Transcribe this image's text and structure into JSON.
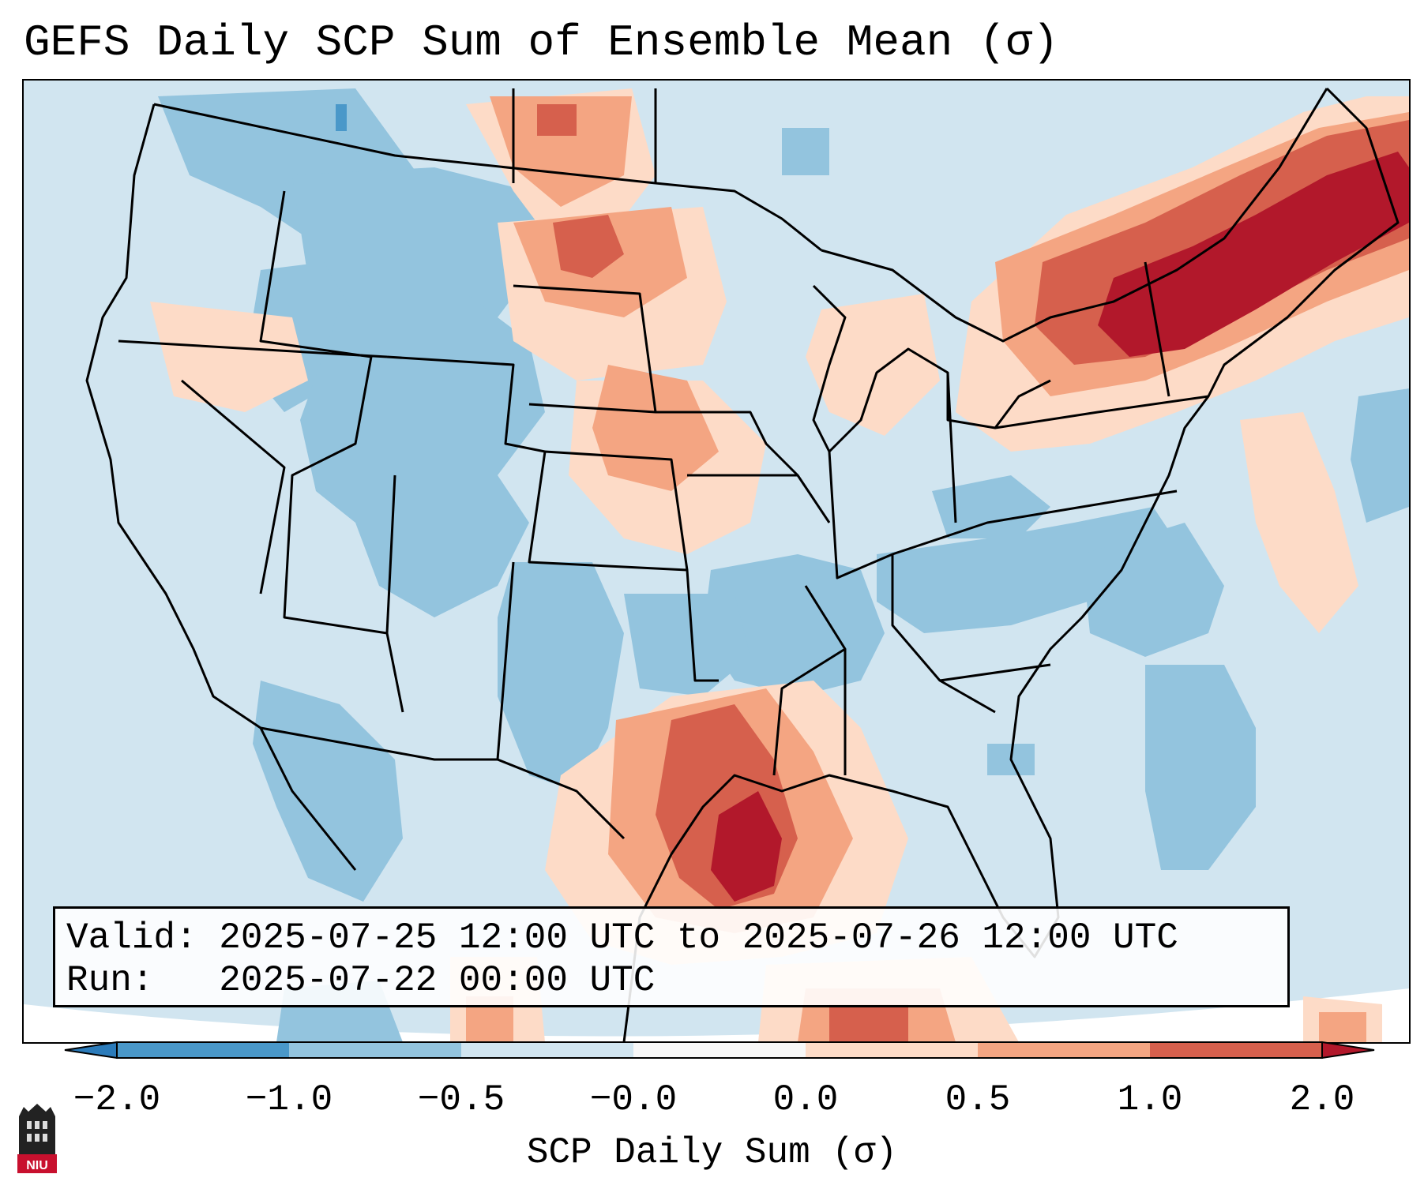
{
  "title": "GEFS Daily SCP Sum of Ensemble Mean (σ)",
  "info": {
    "valid_label": "Valid:",
    "valid_value": "2025-07-25 12:00 UTC to 2025-07-26 12:00 UTC",
    "run_label": "Run:",
    "run_value": "2025-07-22 00:00 UTC"
  },
  "colorbar": {
    "label": "SCP Daily Sum (σ)",
    "ticks": [
      "−2.0",
      "−1.0",
      "−0.5",
      "−0.0",
      "0.0",
      "0.5",
      "1.0",
      "2.0"
    ],
    "bins": [
      {
        "color": "#2b7bba"
      },
      {
        "color": "#4a98c9"
      },
      {
        "color": "#93c4de"
      },
      {
        "color": "#d1e5f0"
      },
      {
        "color": "#f7f7f7"
      },
      {
        "color": "#fddbc7"
      },
      {
        "color": "#f4a582"
      },
      {
        "color": "#d6604d"
      },
      {
        "color": "#b2182b"
      }
    ]
  },
  "colors": {
    "background": "#d1e5f0",
    "light_blue": "#93c4de",
    "dark_blue": "#4a98c9",
    "light_red": "#fddbc7",
    "mid_red": "#f4a582",
    "red": "#d6604d",
    "dark_red": "#b2182b"
  },
  "logo": {
    "text": "NIU"
  }
}
